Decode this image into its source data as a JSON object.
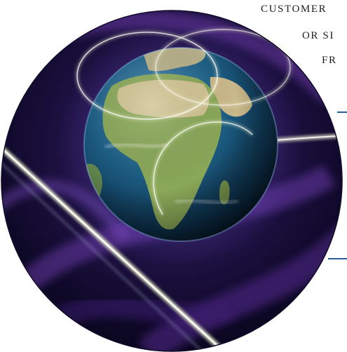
{
  "caption": {
    "line_1": "CUSTOMER",
    "line_2": "OR SI",
    "line_3": "FR"
  },
  "hero_image": {
    "subject": "globe-icon",
    "colors": {
      "background": "#1a0e3a",
      "swirl": "#6b3aa8",
      "accent_line": "#2b5c98",
      "ocean": "#1d5f86",
      "land": "#8aa858"
    }
  }
}
